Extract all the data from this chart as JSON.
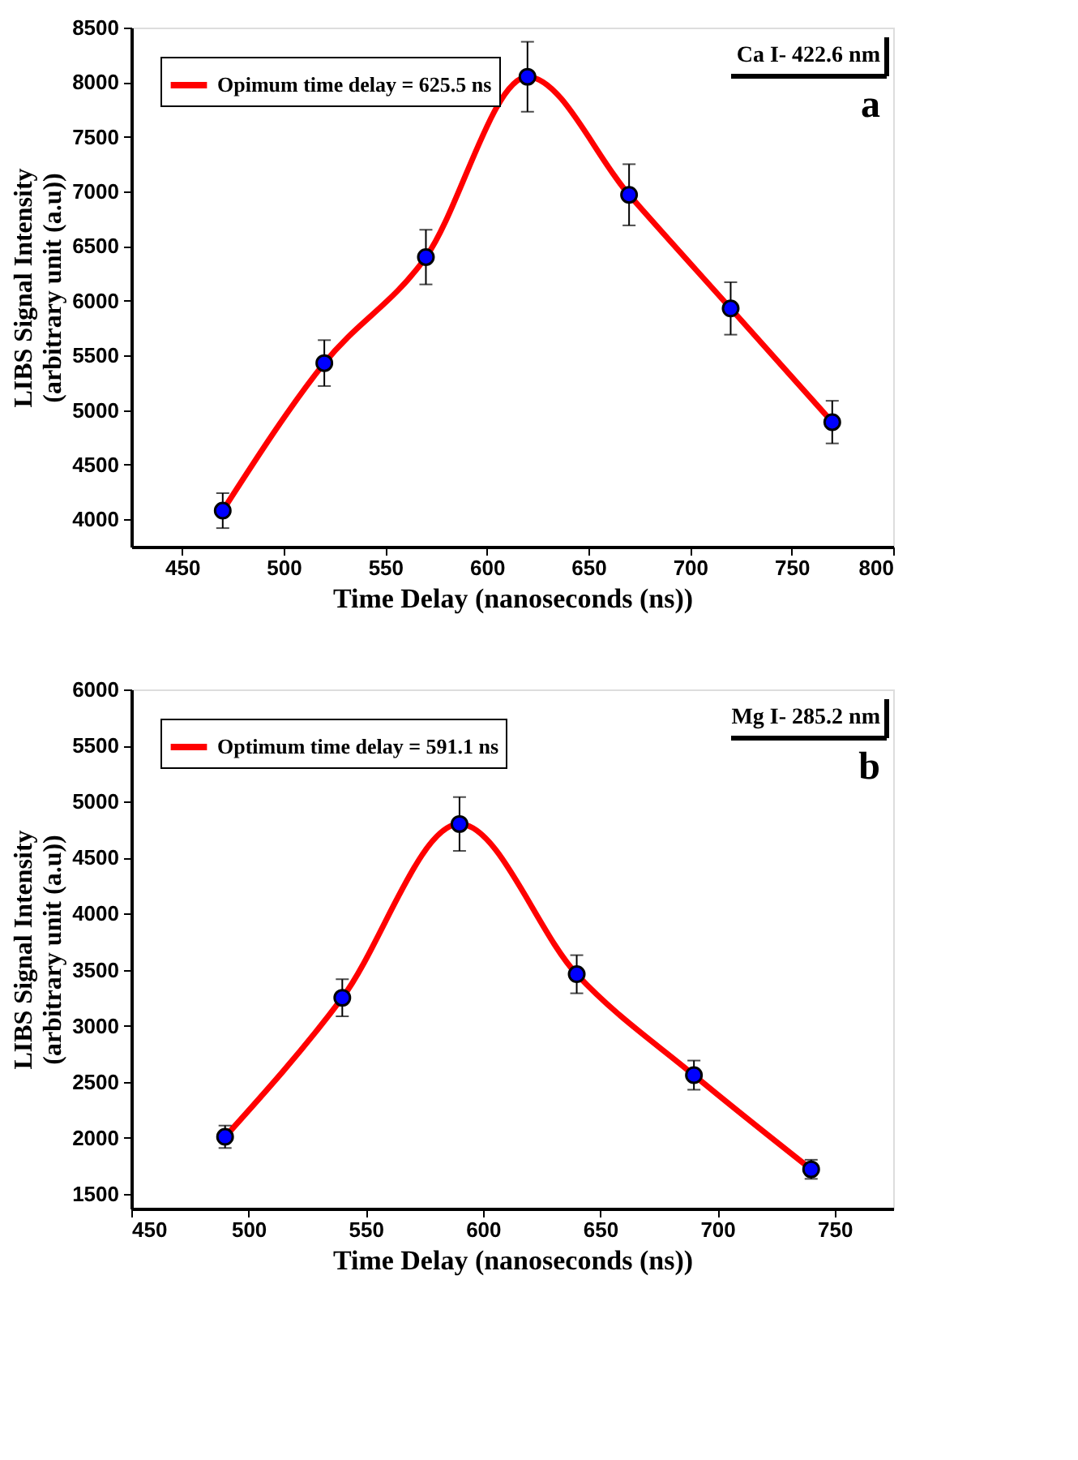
{
  "chart_data": [
    {
      "type": "line",
      "xlabel": "Time Delay (nanoseconds (ns))",
      "ylabel": "LIBS Signal Intensity\n(arbitrary unit (a.u))",
      "x": [
        470,
        520,
        570,
        620,
        670,
        720,
        770
      ],
      "series": [
        {
          "name": "Opimum time delay = 625.5 ns",
          "color": "#ff0000",
          "values": [
            4080,
            5430,
            6400,
            8050,
            6970,
            5930,
            4890
          ],
          "errors": [
            160,
            210,
            250,
            320,
            280,
            240,
            195
          ]
        }
      ],
      "xlim": [
        425,
        800
      ],
      "ylim": [
        3750,
        8500
      ],
      "xticks": [
        450,
        500,
        550,
        600,
        650,
        700,
        750,
        800
      ],
      "yticks": [
        4000,
        4500,
        5000,
        5500,
        6000,
        6500,
        7000,
        7500,
        8000,
        8500
      ],
      "annotations": [
        "Ca I- 422.6 nm",
        "a"
      ],
      "marker": "circle",
      "line_style": "solid",
      "legend": "top left",
      "grid": false
    },
    {
      "type": "line",
      "xlabel": "Time Delay (nanoseconds (ns))",
      "ylabel": "LIBS Signal Intensity\n(arbitrary unit (a.u))",
      "x": [
        490,
        540,
        590,
        640,
        690,
        740
      ],
      "series": [
        {
          "name": "Optimum time delay = 591.1 ns",
          "color": "#ff0000",
          "values": [
            2010,
            3250,
            4800,
            3460,
            2560,
            1720
          ],
          "errors": [
            100,
            165,
            240,
            170,
            130,
            85
          ]
        }
      ],
      "xlim": [
        450,
        775
      ],
      "ylim": [
        1370,
        6000
      ],
      "xticks": [
        450,
        500,
        550,
        600,
        650,
        700,
        750
      ],
      "yticks": [
        1500,
        2000,
        2500,
        3000,
        3500,
        4000,
        4500,
        5000,
        5500,
        6000
      ],
      "annotations": [
        "Mg I- 285.2 nm",
        "b"
      ],
      "marker": "circle",
      "line_style": "solid",
      "legend": "top left",
      "grid": false
    }
  ]
}
